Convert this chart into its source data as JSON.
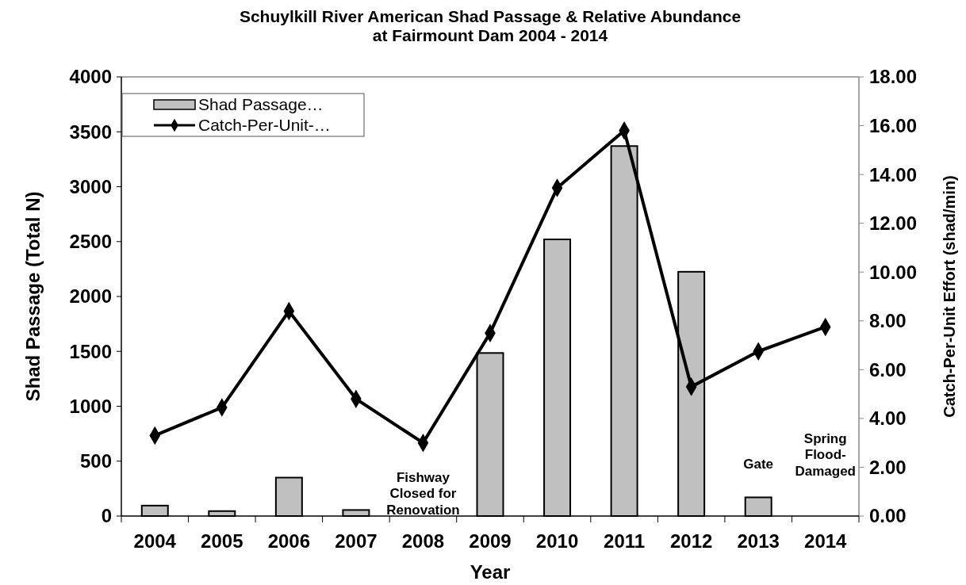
{
  "chart_data": {
    "type": "bar",
    "title": "Schuylkill River American Shad Passage & Relative Abundance at Fairmount Dam 2004 - 2014",
    "xlabel": "Year",
    "ylabel": "Shad Passage (Total N)",
    "y2label": "Catch-Per-Unit Effort (shad/min)",
    "categories": [
      "2004",
      "2005",
      "2006",
      "2007",
      "2008",
      "2009",
      "2010",
      "2011",
      "2012",
      "2013",
      "2014"
    ],
    "series": [
      {
        "name": "Shad Passage…",
        "color": "#c0c0c0",
        "values": [
          95,
          45,
          350,
          55,
          null,
          1485,
          2520,
          3370,
          2225,
          170,
          null
        ]
      },
      {
        "name": "Catch-Per-Unit-…",
        "type": "line",
        "axis": "y2",
        "color": "#000000",
        "marker": "diamond",
        "values": [
          3.3,
          4.45,
          8.4,
          4.8,
          3.0,
          7.5,
          13.45,
          15.8,
          5.3,
          6.75,
          7.75
        ]
      }
    ],
    "ylim": [
      0,
      4000
    ],
    "yticks": [
      0,
      500,
      1000,
      1500,
      2000,
      2500,
      3000,
      3500,
      4000
    ],
    "y2lim": [
      0,
      18
    ],
    "y2ticks": [
      {
        "value": 0,
        "label": "0.00"
      },
      {
        "value": 2,
        "label": "2.00"
      },
      {
        "value": 4,
        "label": "4.00"
      },
      {
        "value": 6,
        "label": "6.00"
      },
      {
        "value": 8,
        "label": "8.00"
      },
      {
        "value": 10,
        "label": "10.00"
      },
      {
        "value": 12,
        "label": "12.00"
      },
      {
        "value": 14,
        "label": "14.00"
      },
      {
        "value": 16,
        "label": "16.00"
      },
      {
        "value": 18,
        "label": "18.00"
      }
    ],
    "annotations": [
      "Fishway Closed for Renovation",
      "Gate",
      "Spring Flood-Damaged"
    ],
    "legend": "top left",
    "grid": false
  }
}
